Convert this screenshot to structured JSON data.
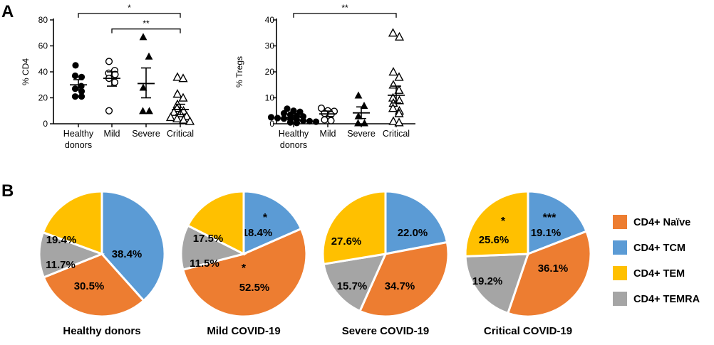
{
  "panel_a_letter": "A",
  "panel_b_letter": "B",
  "chart_data": [
    {
      "type": "scatter",
      "ylabel": "% CD4",
      "ylim": [
        0,
        80
      ],
      "yticks": [
        0,
        20,
        40,
        60,
        80
      ],
      "categories": [
        [
          "Healthy",
          "donors"
        ],
        [
          "Mild"
        ],
        [
          "Severe"
        ],
        [
          "Critical"
        ]
      ],
      "markers": [
        "filled-circle",
        "open-circle",
        "filled-triangle",
        "open-triangle"
      ],
      "groups": [
        {
          "name": "Healthy donors",
          "mean": 30,
          "sem_low": 26,
          "sem_high": 34,
          "points": [
            45,
            37,
            36,
            29,
            27,
            25,
            21,
            21
          ]
        },
        {
          "name": "Mild",
          "mean": 35,
          "sem_low": 29,
          "sem_high": 40,
          "points": [
            48,
            41,
            39,
            38,
            35,
            32,
            10
          ]
        },
        {
          "name": "Severe",
          "mean": 31,
          "sem_low": 20,
          "sem_high": 43,
          "points": [
            67,
            52,
            28,
            10,
            10
          ]
        },
        {
          "name": "Critical",
          "mean": 11,
          "sem_low": 7,
          "sem_high": 15,
          "points": [
            36,
            35,
            23,
            20,
            15,
            12,
            10,
            9,
            8,
            6,
            5,
            4,
            3,
            2
          ]
        }
      ],
      "significance": [
        {
          "from": 0,
          "to": 3,
          "label": "*",
          "y": 85
        },
        {
          "from": 1,
          "to": 3,
          "label": "**",
          "y": 73
        }
      ]
    },
    {
      "type": "scatter",
      "ylabel": "% Tregs",
      "ylim": [
        0,
        40
      ],
      "yticks": [
        0,
        10,
        20,
        30,
        40
      ],
      "categories": [
        [
          "Healthy",
          "donors"
        ],
        [
          "Mild"
        ],
        [
          "Severe"
        ],
        [
          "Critical"
        ]
      ],
      "markers": [
        "filled-circle",
        "open-circle",
        "filled-triangle",
        "open-triangle"
      ],
      "groups": [
        {
          "name": "Healthy donors",
          "mean": 2.5,
          "sem_low": 1.8,
          "sem_high": 3.3,
          "points": [
            5.8,
            5,
            4.6,
            4,
            3.5,
            3,
            2.8,
            2.5,
            2.2,
            2,
            1.8,
            1.5,
            1.2,
            1,
            0.8,
            0.5,
            0.3
          ]
        },
        {
          "name": "Mild",
          "mean": 3.8,
          "sem_low": 2.8,
          "sem_high": 4.9,
          "points": [
            6,
            5,
            4.8,
            4,
            3.5,
            1.5,
            1.2
          ]
        },
        {
          "name": "Severe",
          "mean": 4.2,
          "sem_low": 2,
          "sem_high": 6.5,
          "points": [
            11,
            7,
            3,
            0.3,
            0.3
          ]
        },
        {
          "name": "Critical",
          "mean": 11,
          "sem_low": 8,
          "sem_high": 14.5,
          "points": [
            35,
            33.5,
            20,
            18,
            15,
            13,
            10,
            9,
            8,
            6,
            5,
            4,
            1,
            0.5
          ]
        }
      ],
      "significance": [
        {
          "from": 0,
          "to": 3,
          "label": "**",
          "y": 42.5
        }
      ]
    },
    {
      "type": "pie",
      "title": "Healthy donors",
      "slices": [
        {
          "label": "CD4+ TCM",
          "value": 38.4,
          "text": "38.4%",
          "star": ""
        },
        {
          "label": "CD4+ Naïve",
          "value": 30.5,
          "text": "30.5%",
          "star": ""
        },
        {
          "label": "CD4+ TEMRA",
          "value": 11.7,
          "text": "11.7%",
          "star": ""
        },
        {
          "label": "CD4+ TEM",
          "value": 19.4,
          "text": "19.4%",
          "star": ""
        }
      ]
    },
    {
      "type": "pie",
      "title": "Mild COVID-19",
      "slices": [
        {
          "label": "CD4+ TCM",
          "value": 18.4,
          "text": "18.4%",
          "star": "*"
        },
        {
          "label": "CD4+ Naïve",
          "value": 52.5,
          "text": "52.5%",
          "star": "*"
        },
        {
          "label": "CD4+ TEMRA",
          "value": 11.5,
          "text": "11.5%",
          "star": ""
        },
        {
          "label": "CD4+ TEM",
          "value": 17.5,
          "text": "17.5%",
          "star": ""
        }
      ]
    },
    {
      "type": "pie",
      "title": "Severe COVID-19",
      "slices": [
        {
          "label": "CD4+ TCM",
          "value": 22.0,
          "text": "22.0%",
          "star": ""
        },
        {
          "label": "CD4+ Naïve",
          "value": 34.7,
          "text": "34.7%",
          "star": ""
        },
        {
          "label": "CD4+ TEMRA",
          "value": 15.7,
          "text": "15.7%",
          "star": ""
        },
        {
          "label": "CD4+ TEM",
          "value": 27.6,
          "text": "27.6%",
          "star": ""
        }
      ]
    },
    {
      "type": "pie",
      "title": "Critical COVID-19",
      "slices": [
        {
          "label": "CD4+ TCM",
          "value": 19.1,
          "text": "19.1%",
          "star": "***"
        },
        {
          "label": "CD4+ Naïve",
          "value": 36.1,
          "text": "36.1%",
          "star": ""
        },
        {
          "label": "CD4+ TEMRA",
          "value": 19.2,
          "text": "19.2%",
          "star": ""
        },
        {
          "label": "CD4+ TEM",
          "value": 25.6,
          "text": "25.6%",
          "star": "*"
        }
      ]
    }
  ],
  "legend": [
    {
      "label": "CD4+ Naïve",
      "color": "#ED7D31"
    },
    {
      "label": "CD4+ TCM",
      "color": "#5B9BD5"
    },
    {
      "label": "CD4+ TEM",
      "color": "#FFC000"
    },
    {
      "label": "CD4+ TEMRA",
      "color": "#A5A5A5"
    }
  ]
}
